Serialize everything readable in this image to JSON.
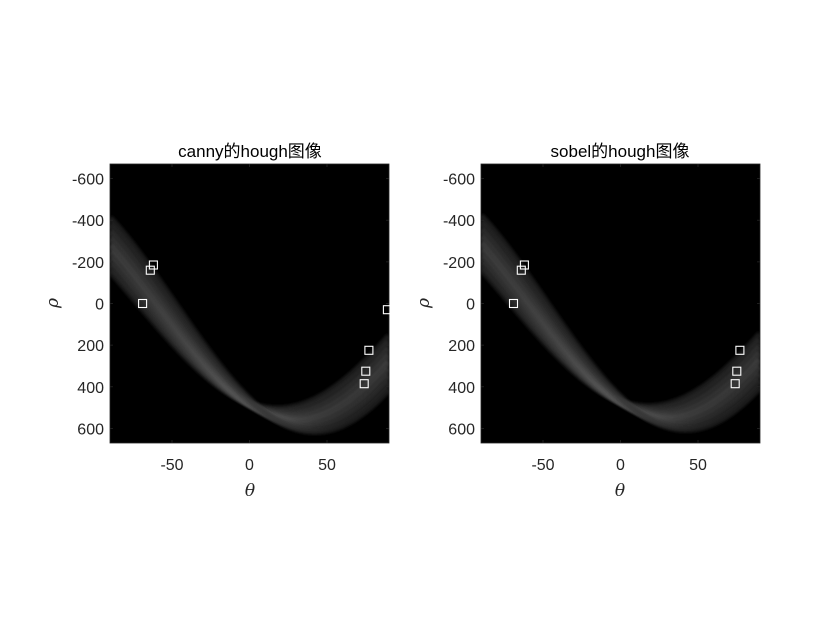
{
  "chart_data": [
    {
      "type": "heatmap",
      "title": "canny的hough图像",
      "xlabel": "θ",
      "ylabel": "ρ",
      "xlim": [
        -90,
        90
      ],
      "ylim": [
        -670,
        670
      ],
      "y_direction": "reversed",
      "xticks": [
        -50,
        0,
        50
      ],
      "yticks": [
        -600,
        -400,
        -200,
        0,
        200,
        400,
        600
      ],
      "colormap": "gray",
      "background_color": "#000000",
      "marker_color": "#ffffff",
      "peaks": [
        {
          "theta": -62,
          "rho": -185
        },
        {
          "theta": -64,
          "rho": -160
        },
        {
          "theta": -69,
          "rho": 0
        },
        {
          "theta": 77,
          "rho": 225
        },
        {
          "theta": 75,
          "rho": 325
        },
        {
          "theta": 74,
          "rho": 385
        },
        {
          "theta": 89,
          "rho": 30
        }
      ]
    },
    {
      "type": "heatmap",
      "title": "sobel的hough图像",
      "xlabel": "θ",
      "ylabel": "ρ",
      "xlim": [
        -90,
        90
      ],
      "ylim": [
        -670,
        670
      ],
      "y_direction": "reversed",
      "xticks": [
        -50,
        0,
        50
      ],
      "yticks": [
        -600,
        -400,
        -200,
        0,
        200,
        400,
        600
      ],
      "colormap": "gray",
      "background_color": "#000000",
      "marker_color": "#ffffff",
      "peaks": [
        {
          "theta": -62,
          "rho": -185
        },
        {
          "theta": -64,
          "rho": -160
        },
        {
          "theta": -69,
          "rho": 0
        },
        {
          "theta": 77,
          "rho": 225
        },
        {
          "theta": 75,
          "rho": 325
        },
        {
          "theta": 74,
          "rho": 385
        }
      ]
    }
  ]
}
